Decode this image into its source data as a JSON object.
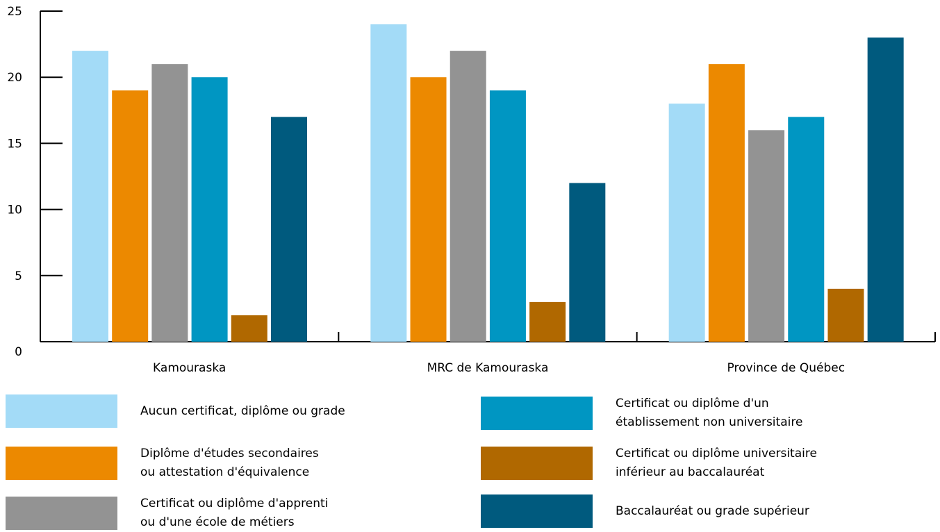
{
  "chart_data": {
    "type": "bar",
    "categories": [
      "Kamouraska",
      "MRC de Kamouraska",
      "Province de Québec"
    ],
    "series": [
      {
        "name": "Aucun certificat, diplôme ou grade",
        "color": "#a3dbf7",
        "values": [
          22,
          24,
          18
        ]
      },
      {
        "name": "Diplôme d'études secondaires\nou attestation d'équivalence",
        "color": "#ec8900",
        "values": [
          19,
          20,
          21
        ]
      },
      {
        "name": "Certificat ou diplôme d'apprenti\nou d'une école de métiers",
        "color": "#939393",
        "values": [
          21,
          22,
          16
        ]
      },
      {
        "name": "Certificat ou diplôme d'un\nétablissement non universitaire",
        "color": "#0096c2",
        "values": [
          20,
          19,
          17
        ]
      },
      {
        "name": "Certificat ou diplôme universitaire\ninférieur au baccalauréat",
        "color": "#b06800",
        "values": [
          2,
          3,
          4
        ]
      },
      {
        "name": "Baccalauréat ou grade supérieur",
        "color": "#005a7e",
        "values": [
          17,
          12,
          23
        ]
      }
    ],
    "y_ticks": [
      "0",
      "5",
      "10",
      "15",
      "20",
      "25"
    ],
    "ylim": [
      0,
      25
    ],
    "xlabel": "",
    "ylabel": "",
    "title": "",
    "grid": false,
    "legend_position": "bottom"
  }
}
